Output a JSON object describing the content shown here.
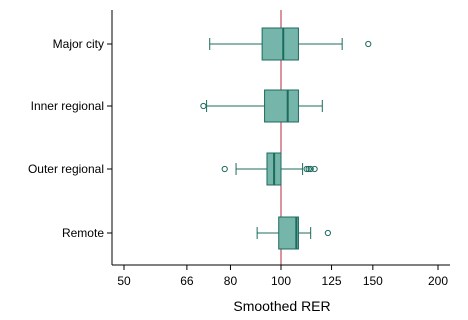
{
  "chart_data": {
    "type": "boxplot",
    "orientation": "horizontal",
    "xlabel": "Smoothed RER",
    "x_scale": "log",
    "xlim": [
      45,
      210
    ],
    "x_ticks": [
      50,
      66,
      80,
      100,
      125,
      150,
      200
    ],
    "reference_line": 100,
    "grid": false,
    "legend": "none",
    "categories": [
      "Major city",
      "Inner regional",
      "Outer regional",
      "Remote"
    ],
    "boxes": [
      {
        "category": "Major city",
        "whisker_low": 73,
        "q1": 92,
        "median": 101,
        "q3": 108,
        "whisker_high": 131,
        "outliers": [
          147
        ]
      },
      {
        "category": "Inner regional",
        "whisker_low": 72,
        "q1": 93,
        "median": 103,
        "q3": 108,
        "whisker_high": 120,
        "outliers": [
          71
        ]
      },
      {
        "category": "Outer regional",
        "whisker_low": 82,
        "q1": 94,
        "median": 97,
        "q3": 100,
        "whisker_high": 110,
        "outliers": [
          78,
          112,
          113,
          114,
          116
        ]
      },
      {
        "category": "Remote",
        "whisker_low": 90,
        "q1": 99,
        "median": 107,
        "q3": 108,
        "whisker_high": 114,
        "outliers": [
          123
        ]
      }
    ],
    "colors": {
      "box_fill": "#76b5a9",
      "box_stroke": "#1c6b5e",
      "reference_line": "#b02a3f",
      "axis": "#000000"
    }
  }
}
